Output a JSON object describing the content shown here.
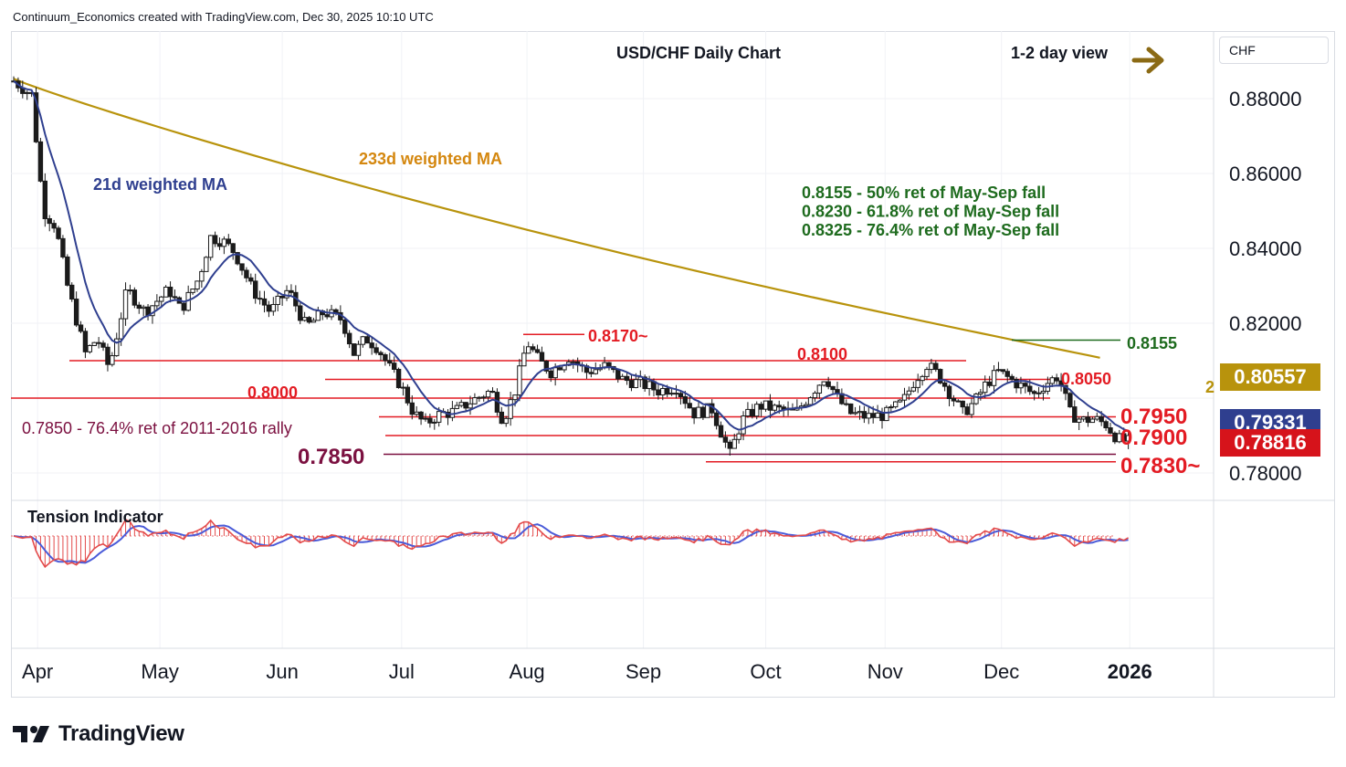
{
  "header": {
    "credit": "Continuum_Economics created with TradingView.com, Dec 30, 2025 10:10 UTC"
  },
  "brand": {
    "name": "TradingView"
  },
  "currency": "CHF",
  "chart_data": {
    "type": "candlestick",
    "title": "USD/CHF Daily Chart",
    "view_label": "1-2 day view",
    "view_arrow": "right-arrow",
    "y_axis": {
      "range": [
        0.772,
        0.894
      ],
      "ticks": [
        "0.88000",
        "0.86000",
        "0.84000",
        "0.82000",
        "0.78000"
      ],
      "tick_values": [
        0.88,
        0.86,
        0.84,
        0.82,
        0.78
      ]
    },
    "x_axis": {
      "labels": [
        "Apr",
        "May",
        "Jun",
        "Jul",
        "Aug",
        "Sep",
        "Oct",
        "Nov",
        "Dec",
        "2026"
      ],
      "bold_label": "2026"
    },
    "ma_labels": {
      "ma21": "21d weighted MA",
      "ma233": "233d weighted MA",
      "ma233_edge_fragment": "2"
    },
    "colors": {
      "ma21": "#2f3f8f",
      "ma233": "#b8930c",
      "support_resistance": "#e31b23",
      "fib_text": "#1e6b1e",
      "annotation_maroon": "#7b1040",
      "candle": "#1b1b1b",
      "histogram": "#e34a4a",
      "tension_fast": "#e34a4a",
      "tension_slow": "#4a5bd8",
      "tag_ma233": "#b8930c",
      "tag_ma21": "#2f3f8f",
      "tag_last": "#d6131b"
    },
    "fib_notes": [
      "0.8155 - 50% ret of May-Sep fall",
      "0.8230 - 61.8% ret of May-Sep fall",
      "0.8325 - 76.4% ret of May-Sep fall"
    ],
    "levels": [
      {
        "value": 0.817,
        "label": "0.8170~"
      },
      {
        "value": 0.81,
        "label": "0.8100"
      },
      {
        "value": 0.805,
        "label": "0.8050"
      },
      {
        "value": 0.8,
        "label": "0.8000"
      },
      {
        "value": 0.795,
        "label": "0.7950"
      },
      {
        "value": 0.79,
        "label": "0.7900"
      },
      {
        "value": 0.785,
        "label": "0.7850"
      },
      {
        "value": 0.783,
        "label": "0.7830~"
      },
      {
        "value": 0.8155,
        "label": "0.8155"
      }
    ],
    "notes": {
      "rally_note": "0.7850 - 76.4% ret of 2011-2016 rally"
    },
    "price_tags": [
      {
        "label": "0.80557",
        "value": 0.80557,
        "kind": "ma233"
      },
      {
        "label": "0.79331",
        "value": 0.79331,
        "kind": "ma21"
      },
      {
        "label": "0.78816",
        "value": 0.78816,
        "kind": "last"
      }
    ],
    "panel": {
      "title": "Tension Indicator"
    },
    "series_close_path": [
      [
        0,
        0.8847
      ],
      [
        6,
        0.881
      ],
      [
        10,
        0.85
      ],
      [
        14,
        0.846
      ],
      [
        18,
        0.83
      ],
      [
        24,
        0.812
      ],
      [
        28,
        0.816
      ],
      [
        32,
        0.808
      ],
      [
        38,
        0.829
      ],
      [
        44,
        0.823
      ],
      [
        52,
        0.829
      ],
      [
        56,
        0.8235
      ],
      [
        62,
        0.832
      ],
      [
        66,
        0.843
      ],
      [
        70,
        0.842
      ],
      [
        74,
        0.839
      ],
      [
        80,
        0.829
      ],
      [
        86,
        0.823
      ],
      [
        92,
        0.829
      ],
      [
        98,
        0.819
      ],
      [
        104,
        0.823
      ],
      [
        110,
        0.821
      ],
      [
        114,
        0.812
      ],
      [
        118,
        0.816
      ],
      [
        122,
        0.8135
      ],
      [
        126,
        0.808
      ],
      [
        130,
        0.803
      ],
      [
        134,
        0.796
      ],
      [
        138,
        0.793
      ],
      [
        142,
        0.7955
      ],
      [
        148,
        0.7965
      ],
      [
        154,
        0.7995
      ],
      [
        160,
        0.802
      ],
      [
        164,
        0.794
      ],
      [
        168,
        0.802
      ],
      [
        172,
        0.815
      ],
      [
        176,
        0.81
      ],
      [
        180,
        0.807
      ],
      [
        186,
        0.811
      ],
      [
        192,
        0.807
      ],
      [
        198,
        0.8085
      ],
      [
        204,
        0.805
      ],
      [
        210,
        0.804
      ],
      [
        216,
        0.802
      ],
      [
        222,
        0.803
      ],
      [
        228,
        0.796
      ],
      [
        234,
        0.797
      ],
      [
        240,
        0.785
      ],
      [
        244,
        0.794
      ],
      [
        250,
        0.798
      ],
      [
        256,
        0.797
      ],
      [
        262,
        0.796
      ],
      [
        268,
        0.802
      ],
      [
        272,
        0.806
      ],
      [
        276,
        0.8
      ],
      [
        280,
        0.796
      ],
      [
        286,
        0.795
      ],
      [
        292,
        0.7955
      ],
      [
        298,
        0.799
      ],
      [
        302,
        0.805
      ],
      [
        306,
        0.809
      ],
      [
        310,
        0.806
      ],
      [
        314,
        0.801
      ],
      [
        318,
        0.796
      ],
      [
        322,
        0.799
      ],
      [
        326,
        0.804
      ],
      [
        330,
        0.807
      ],
      [
        334,
        0.805
      ],
      [
        338,
        0.803
      ],
      [
        342,
        0.801
      ],
      [
        346,
        0.804
      ],
      [
        350,
        0.806
      ],
      [
        354,
        0.796
      ],
      [
        358,
        0.794
      ],
      [
        362,
        0.7945
      ],
      [
        366,
        0.793
      ],
      [
        370,
        0.789
      ],
      [
        374,
        0.7882
      ]
    ]
  }
}
